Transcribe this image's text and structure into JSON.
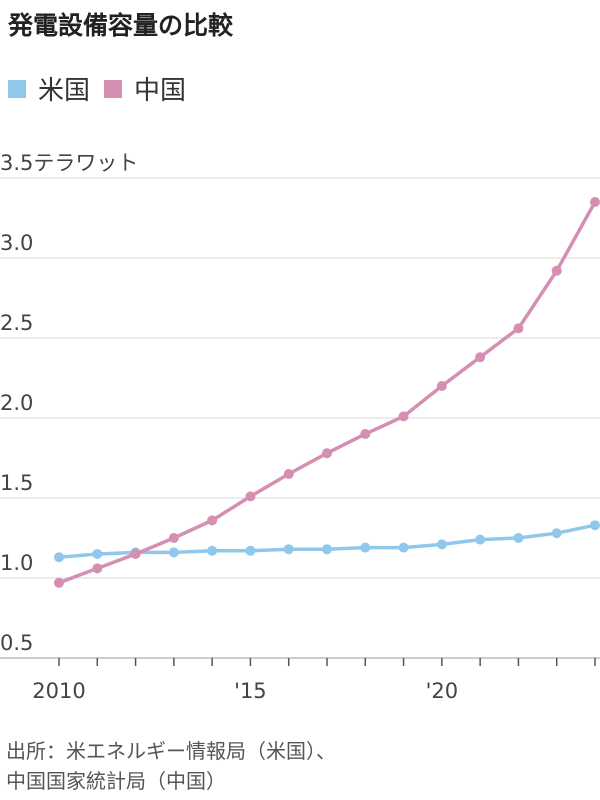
{
  "chart_data": {
    "type": "line",
    "title": "発電設備容量の比較",
    "ylabel": "テラワット",
    "x": [
      2010,
      2011,
      2012,
      2013,
      2014,
      2015,
      2016,
      2017,
      2018,
      2019,
      2020,
      2021,
      2022,
      2023,
      2024
    ],
    "xticks": [
      {
        "value": 2010,
        "label": "2010"
      },
      {
        "value": 2015,
        "label": "'15"
      },
      {
        "value": 2020,
        "label": "'20"
      }
    ],
    "yticks": [
      {
        "value": 0.5,
        "label": "0.5"
      },
      {
        "value": 1.0,
        "label": "1.0"
      },
      {
        "value": 1.5,
        "label": "1.5"
      },
      {
        "value": 2.0,
        "label": "2.0"
      },
      {
        "value": 2.5,
        "label": "2.5"
      },
      {
        "value": 3.0,
        "label": "3.0"
      },
      {
        "value": 3.5,
        "label": "3.5テラワット"
      }
    ],
    "ylim": [
      0.5,
      3.5
    ],
    "xlim": [
      2010,
      2024
    ],
    "grid": true,
    "legend_placement": "top-left",
    "series": [
      {
        "name": "米国",
        "color": "#8fc8ea",
        "values": [
          1.13,
          1.15,
          1.16,
          1.16,
          1.17,
          1.17,
          1.18,
          1.18,
          1.19,
          1.19,
          1.21,
          1.24,
          1.25,
          1.28,
          1.33
        ]
      },
      {
        "name": "中国",
        "color": "#d48fb2",
        "values": [
          0.97,
          1.06,
          1.15,
          1.25,
          1.36,
          1.51,
          1.65,
          1.78,
          1.9,
          2.01,
          2.2,
          2.38,
          2.56,
          2.92,
          3.35
        ]
      }
    ]
  },
  "source": {
    "line1": "出所：米エネルギー情報局（米国）、",
    "line2": "中国国家統計局（中国）"
  }
}
